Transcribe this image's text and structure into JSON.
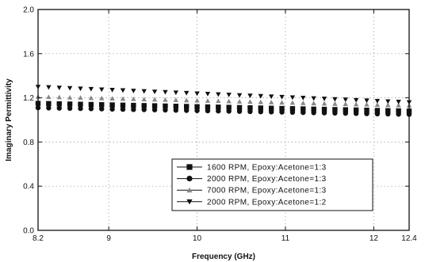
{
  "chart_data": {
    "type": "scatter",
    "xlabel": "Frequency (GHz)",
    "ylabel": "Imaginary Permittivity",
    "xlim": [
      8.2,
      12.4
    ],
    "ylim": [
      0.0,
      2.0
    ],
    "x_ticks": [
      8.2,
      9,
      10,
      11,
      12,
      12.4
    ],
    "x_tick_labels": [
      "8.2",
      "9",
      "10",
      "11",
      "12",
      "12.4"
    ],
    "y_ticks": [
      0.0,
      0.4,
      0.8,
      1.2,
      1.6,
      2.0
    ],
    "y_tick_labels": [
      "0.0",
      "0.4",
      "0.8",
      "1.2",
      "1.6",
      "2.0"
    ],
    "grid": true,
    "legend_position": "bottom-right",
    "x_start": 8.2,
    "x_end": 12.4,
    "x_step": 0.12,
    "series": [
      {
        "name": "1600 RPM, Epoxy:Acetone=1:3",
        "marker": "square",
        "start": 1.15,
        "end": 1.08,
        "color": "#111111"
      },
      {
        "name": "2000 RPM, Epoxy:Acetone=1:3",
        "marker": "circle",
        "start": 1.11,
        "end": 1.05,
        "color": "#111111"
      },
      {
        "name": "7000 RPM, Epoxy:Acetone=1:3",
        "marker": "triangle-up",
        "start": 1.21,
        "end": 1.13,
        "color": "#888888"
      },
      {
        "name": "2000 RPM, Epoxy:Acetone=1:2",
        "marker": "triangle-down",
        "start": 1.3,
        "end": 1.16,
        "color": "#111111"
      }
    ]
  }
}
